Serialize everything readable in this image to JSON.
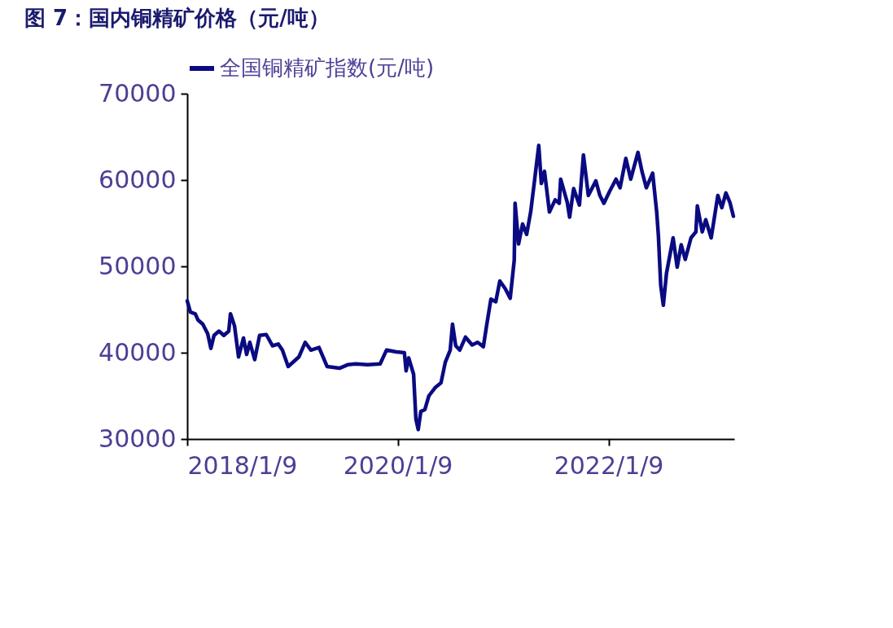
{
  "chart_data": {
    "type": "line",
    "title": "图 7：国内铜精矿价格（元/吨）",
    "x": [
      "2018-01-09",
      "2018-01-20",
      "2018-02-06",
      "2018-02-15",
      "2018-03-04",
      "2018-03-21",
      "2018-04-01",
      "2018-04-12",
      "2018-04-29",
      "2018-05-16",
      "2018-06-02",
      "2018-06-08",
      "2018-06-22",
      "2018-07-06",
      "2018-07-23",
      "2018-08-03",
      "2018-08-14",
      "2018-08-31",
      "2018-09-17",
      "2018-10-10",
      "2018-11-01",
      "2018-11-21",
      "2018-12-05",
      "2018-12-25",
      "2019-01-31",
      "2019-02-22",
      "2019-03-14",
      "2019-04-11",
      "2019-05-09",
      "2019-06-21",
      "2019-07-19",
      "2019-08-16",
      "2019-09-27",
      "2019-11-09",
      "2019-12-01",
      "2020-01-04",
      "2020-02-01",
      "2020-02-07",
      "2020-02-16",
      "2020-03-04",
      "2020-03-12",
      "2020-03-20",
      "2020-03-29",
      "2020-04-12",
      "2020-04-26",
      "2020-05-19",
      "2020-06-07",
      "2020-06-22",
      "2020-07-09",
      "2020-07-17",
      "2020-07-28",
      "2020-08-11",
      "2020-08-31",
      "2020-09-23",
      "2020-10-12",
      "2020-11-01",
      "2020-11-12",
      "2020-11-27",
      "2020-12-14",
      "2020-12-28",
      "2021-01-16",
      "2021-02-02",
      "2021-02-16",
      "2021-02-19",
      "2021-03-03",
      "2021-03-17",
      "2021-03-31",
      "2021-04-14",
      "2021-04-28",
      "2021-05-12",
      "2021-05-21",
      "2021-06-01",
      "2021-06-18",
      "2021-07-08",
      "2021-07-22",
      "2021-07-27",
      "2021-08-19",
      "2021-08-27",
      "2021-09-10",
      "2021-09-30",
      "2021-10-14",
      "2021-10-31",
      "2021-11-26",
      "2021-12-10",
      "2021-12-24",
      "2022-01-13",
      "2022-02-04",
      "2022-02-18",
      "2022-03-10",
      "2022-03-27",
      "2022-04-21",
      "2022-05-05",
      "2022-05-20",
      "2022-06-11",
      "2022-06-25",
      "2022-07-01",
      "2022-07-09",
      "2022-07-18",
      "2022-07-29",
      "2022-08-21",
      "2022-09-04",
      "2022-09-18",
      "2022-10-02",
      "2022-10-22",
      "2022-11-08",
      "2022-11-13",
      "2022-11-30",
      "2022-12-12",
      "2022-12-31",
      "2023-01-23",
      "2023-02-06",
      "2023-02-20",
      "2023-03-06",
      "2023-03-18"
    ],
    "series": [
      {
        "name": "全国铜精矿指数(元/吨)",
        "color": "#0a0a82",
        "values": [
          46000,
          44700,
          44500,
          43800,
          43300,
          42200,
          40500,
          42000,
          42500,
          42000,
          42500,
          44500,
          43100,
          39500,
          41700,
          39800,
          41200,
          39200,
          42000,
          42100,
          40800,
          41000,
          40300,
          38400,
          39500,
          41200,
          40300,
          40600,
          38400,
          38200,
          38600,
          38700,
          38600,
          38700,
          40300,
          40100,
          40000,
          37900,
          39400,
          37500,
          32300,
          31100,
          33200,
          33400,
          35000,
          36000,
          36500,
          38900,
          40300,
          43300,
          40800,
          40300,
          41800,
          40900,
          41200,
          40700,
          43100,
          46200,
          45900,
          48300,
          47400,
          46300,
          50700,
          57300,
          52600,
          54900,
          53700,
          56300,
          60100,
          64000,
          59600,
          61000,
          56300,
          57700,
          57300,
          60100,
          57400,
          55700,
          59000,
          57100,
          62900,
          58200,
          59900,
          58200,
          57300,
          58700,
          60100,
          59100,
          62500,
          60100,
          63200,
          61000,
          59100,
          60800,
          56300,
          53500,
          47800,
          45500,
          49200,
          53300,
          49900,
          52500,
          50800,
          53300,
          54000,
          57000,
          54000,
          55400,
          53300,
          58200,
          56800,
          58500,
          57400,
          55800
        ]
      }
    ],
    "xlim": [
      "2018-01-09",
      "2023-03-21"
    ],
    "xticks": [
      {
        "value": "2018-01-09",
        "label": "2018/1/9"
      },
      {
        "value": "2020-01-09",
        "label": "2020/1/9"
      },
      {
        "value": "2022-01-09",
        "label": "2022/1/9"
      }
    ],
    "ylim": [
      30000,
      70000
    ],
    "yticks": [
      30000,
      40000,
      50000,
      60000,
      70000
    ],
    "grid": false,
    "legend": "top",
    "line_style": "solid",
    "marker": "none"
  }
}
